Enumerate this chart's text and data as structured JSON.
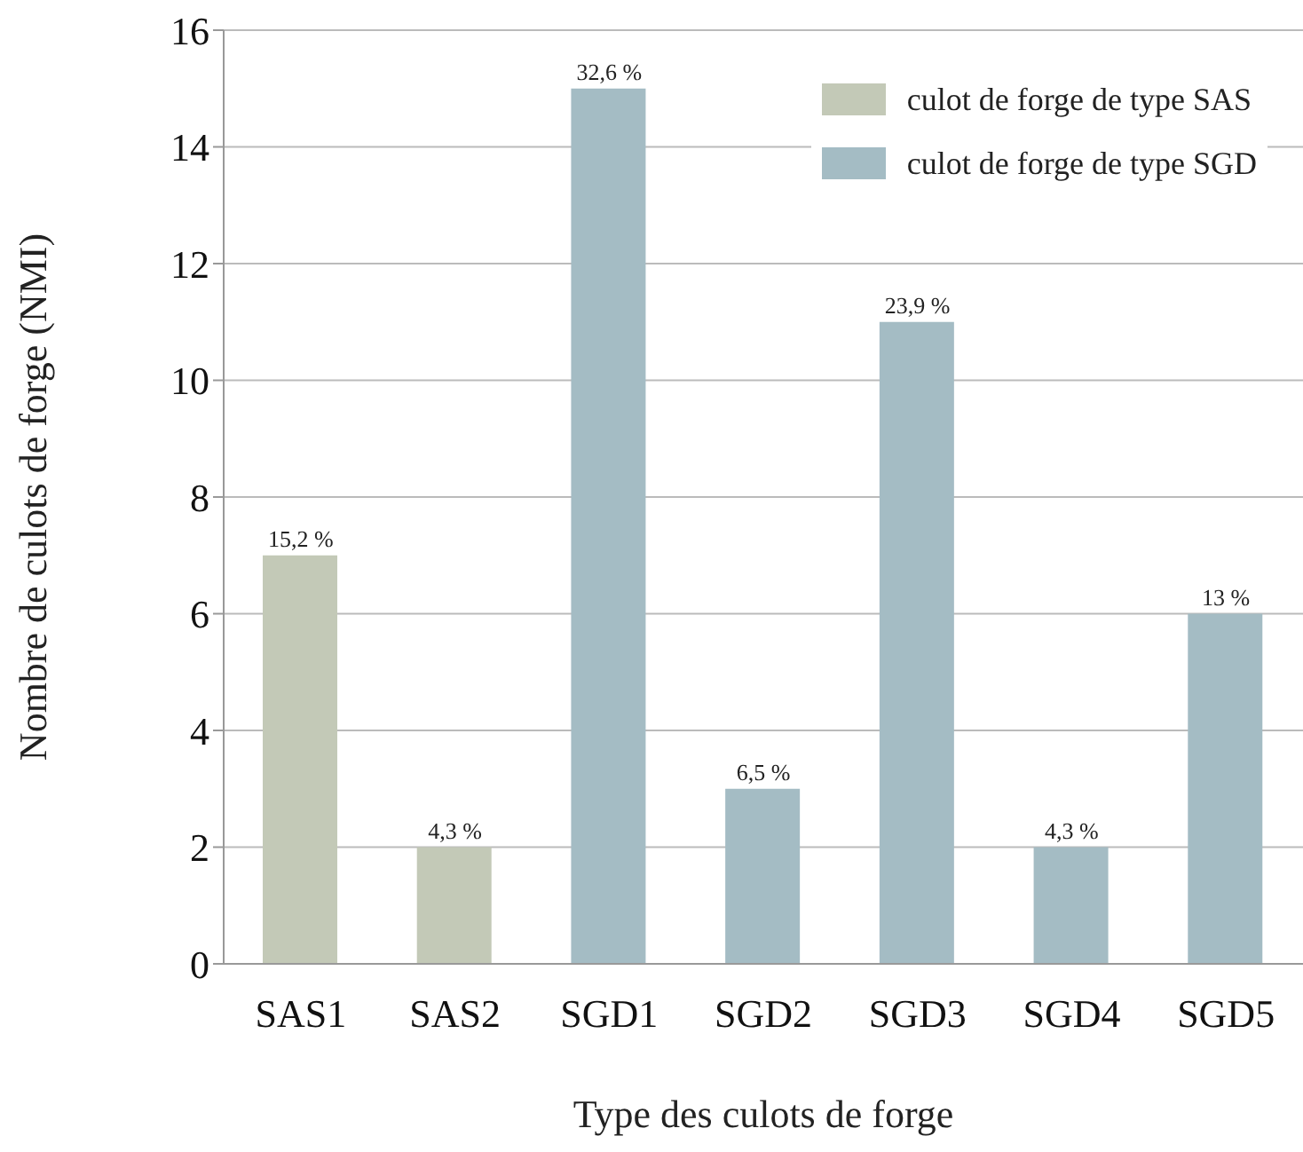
{
  "chart_data": {
    "type": "bar",
    "xlabel": "Type des culots de forge",
    "ylabel": "Nombre de culots de forge (NMI)",
    "categories": [
      "SAS1",
      "SAS2",
      "SGD1",
      "SGD2",
      "SGD3",
      "SGD4",
      "SGD5"
    ],
    "series": [
      {
        "name": "culot de forge de type SAS",
        "color": "#c3c9b7",
        "values": [
          7,
          2,
          null,
          null,
          null,
          null,
          null
        ]
      },
      {
        "name": "culot de forge de type SGD",
        "color": "#a4bcc4",
        "values": [
          null,
          null,
          15,
          3,
          11,
          2,
          6
        ]
      }
    ],
    "annotations": [
      {
        "text": "15,2 %",
        "x": "SAS1",
        "y": 7
      },
      {
        "text": "4,3 %",
        "x": "SAS2",
        "y": 2
      },
      {
        "text": "32,6 %",
        "x": "SGD1",
        "y": 15
      },
      {
        "text": "6,5 %",
        "x": "SGD2",
        "y": 3
      },
      {
        "text": "23,9 %",
        "x": "SGD3",
        "y": 11
      },
      {
        "text": "4,3 %",
        "x": "SGD4",
        "y": 2
      },
      {
        "text": "13 %",
        "x": "SGD5",
        "y": 6
      }
    ],
    "stacked": true,
    "ylim": [
      0,
      16
    ],
    "yticks": [
      0,
      2,
      4,
      6,
      8,
      10,
      12,
      14,
      16
    ],
    "grid": "y",
    "legend": "top right"
  }
}
